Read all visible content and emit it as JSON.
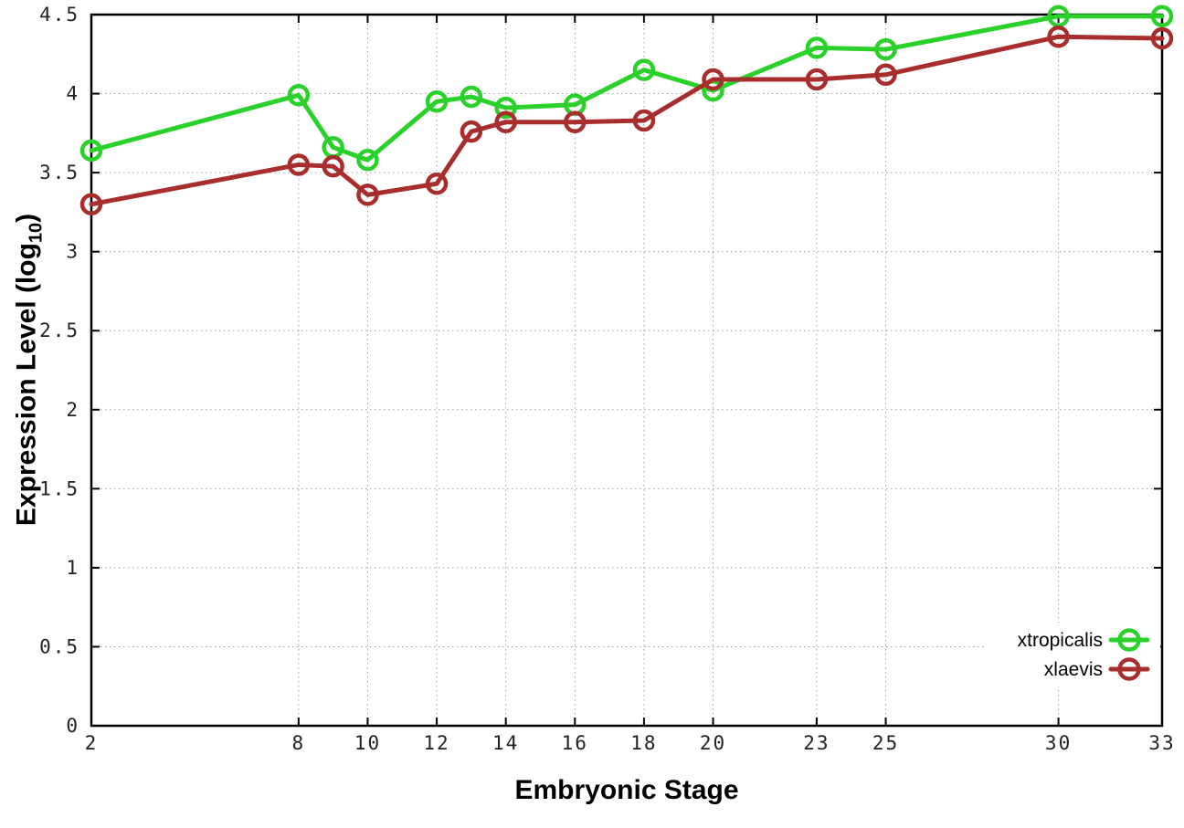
{
  "figure": {
    "background": "#ffffff"
  },
  "chart_data": {
    "type": "line",
    "title": "",
    "xlabel": "Embryonic Stage",
    "ylabel": "Expression Level (log10)",
    "ylabel_parts": {
      "pre": "Expression Level (log",
      "sub": "10",
      "post": ")"
    },
    "xlim": [
      2,
      33
    ],
    "ylim": [
      0,
      4.5
    ],
    "x_ticks": [
      2,
      8,
      10,
      12,
      14,
      16,
      18,
      20,
      23,
      25,
      30,
      33
    ],
    "y_ticks": [
      0,
      0.5,
      1,
      1.5,
      2,
      2.5,
      3,
      3.5,
      4,
      4.5
    ],
    "grid": true,
    "legend_position": "bottom-right-inside",
    "marker": "open-circle",
    "x": [
      2,
      8,
      9,
      10,
      12,
      13,
      14,
      16,
      18,
      20,
      23,
      25,
      30,
      33
    ],
    "series": [
      {
        "name": "xtropicalis",
        "color": "#2bd12b",
        "values": [
          3.64,
          3.99,
          3.66,
          3.58,
          3.95,
          3.98,
          3.91,
          3.93,
          4.15,
          4.02,
          4.29,
          4.28,
          4.49,
          4.49
        ]
      },
      {
        "name": "xlaevis",
        "color": "#a82e2e",
        "values": [
          3.3,
          3.55,
          3.54,
          3.36,
          3.43,
          3.76,
          3.82,
          3.82,
          3.83,
          4.09,
          4.09,
          4.12,
          4.36,
          4.35
        ]
      }
    ],
    "colors": {
      "axis": "#000000",
      "grid": "#a0a0a0",
      "text": "#222222"
    }
  }
}
